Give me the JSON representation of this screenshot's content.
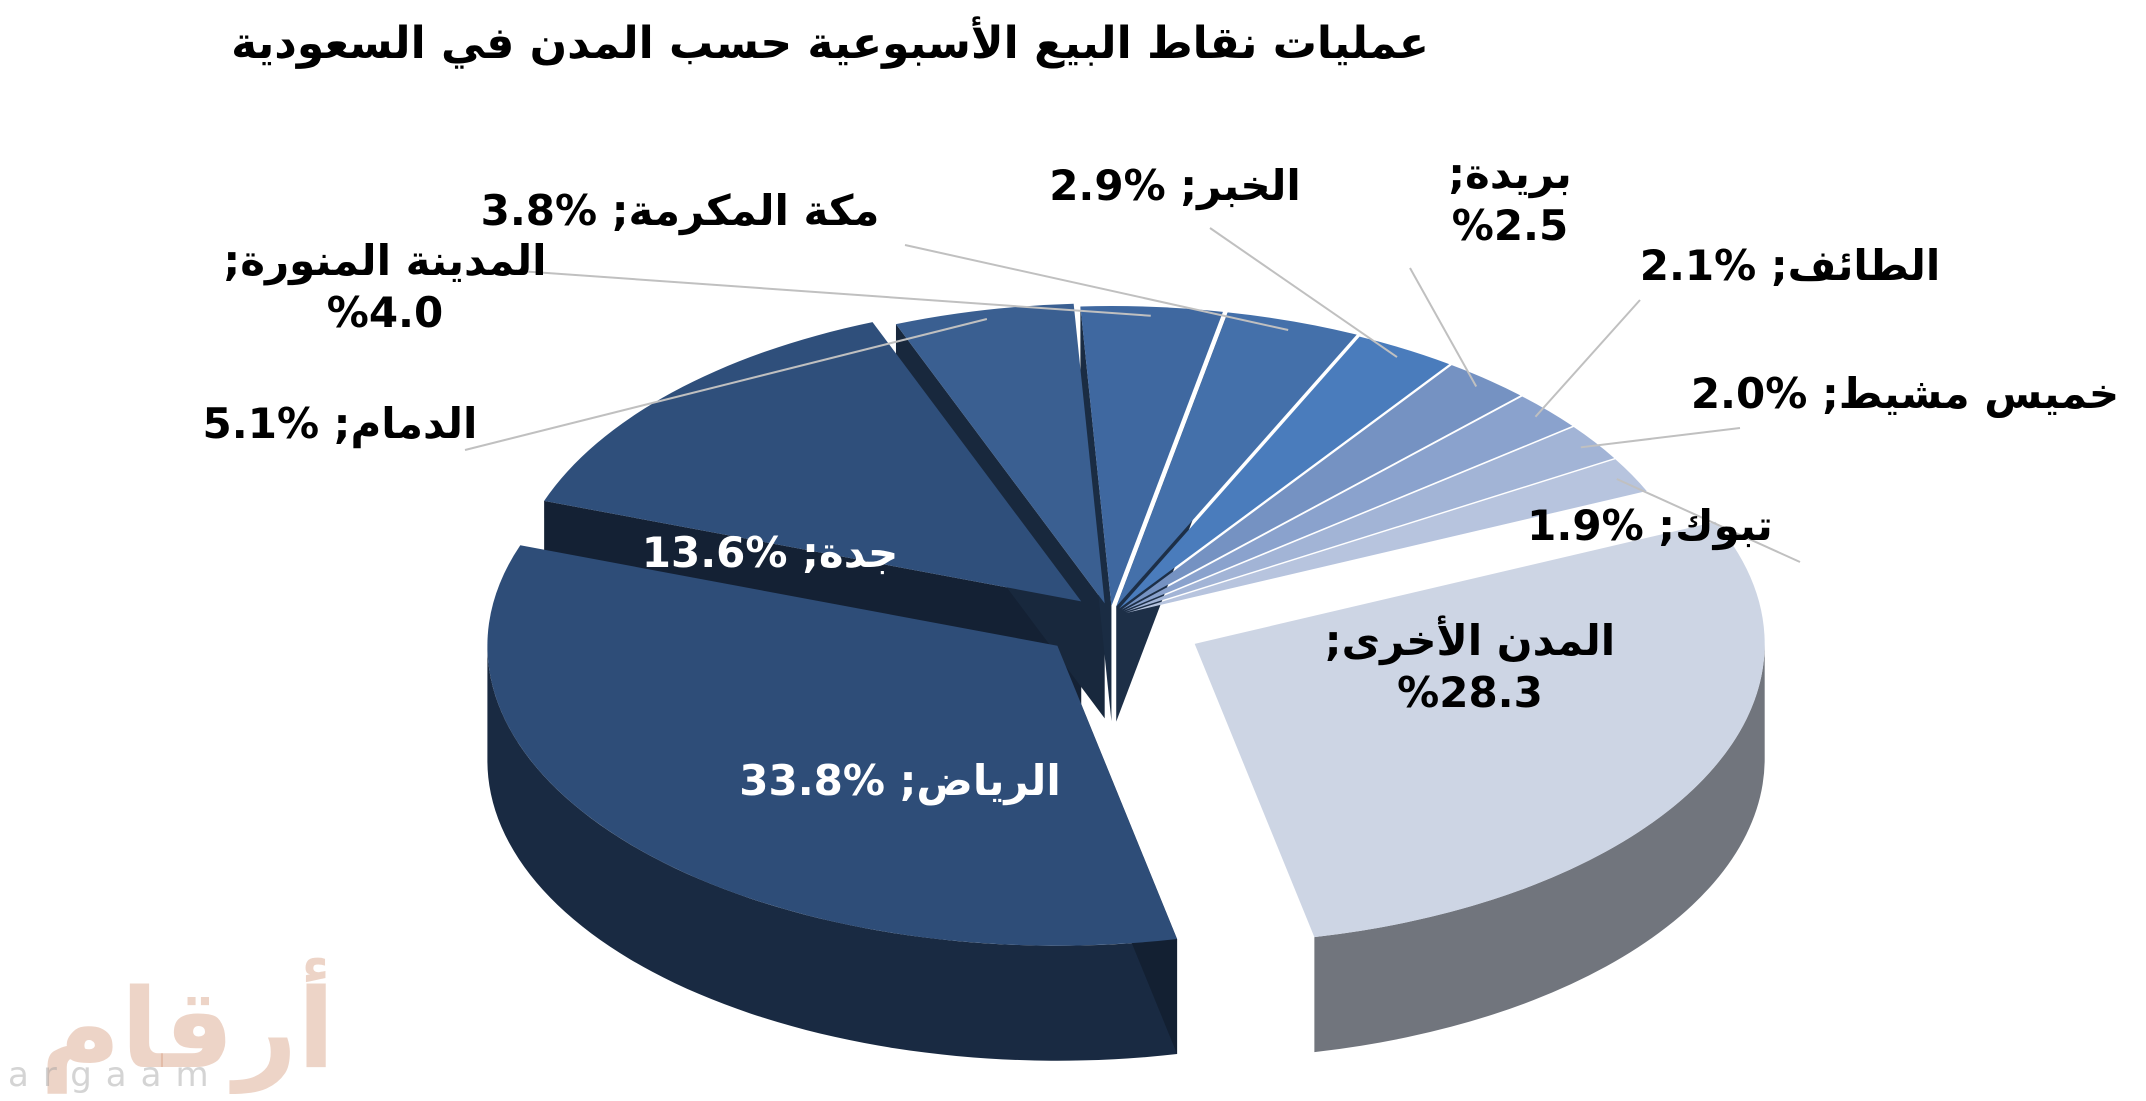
{
  "chart_data": {
    "type": "pie",
    "title": "عمليات نقاط البيع الأسبوعية حسب المدن في السعودية",
    "slices": [
      {
        "label": "المدن الأخرى",
        "value": 28.3,
        "display": "%28.3",
        "color": "#cdd5e4"
      },
      {
        "label": "الرياض",
        "value": 33.8,
        "display": "%33.8",
        "color": "#2e4d78"
      },
      {
        "label": "جدة",
        "value": 13.6,
        "display": "%13.6",
        "color": "#2f4f7b"
      },
      {
        "label": "الدمام",
        "value": 5.1,
        "display": "%5.1",
        "color": "#3a5f91"
      },
      {
        "label": "المدينة المنورة",
        "value": 4.0,
        "display": "%4.0",
        "color": "#3f68a0"
      },
      {
        "label": "مكة المكرمة",
        "value": 3.8,
        "display": "%3.8",
        "color": "#4470aa"
      },
      {
        "label": "الخبر",
        "value": 2.9,
        "display": "%2.9",
        "color": "#4a7cbc"
      },
      {
        "label": "بريدة",
        "value": 2.5,
        "display": "%2.5",
        "color": "#7592c2"
      },
      {
        "label": "الطائف",
        "value": 2.1,
        "display": "%2.1",
        "color": "#8aa2cd"
      },
      {
        "label": "خميس مشيط",
        "value": 2.0,
        "display": "%2.0",
        "color": "#a2b4d6"
      },
      {
        "label": "تبوك",
        "value": 1.9,
        "display": "%1.9",
        "color": "#b7c4de"
      }
    ]
  },
  "watermark": {
    "arabic": "أرقام",
    "latin": "argaam"
  }
}
